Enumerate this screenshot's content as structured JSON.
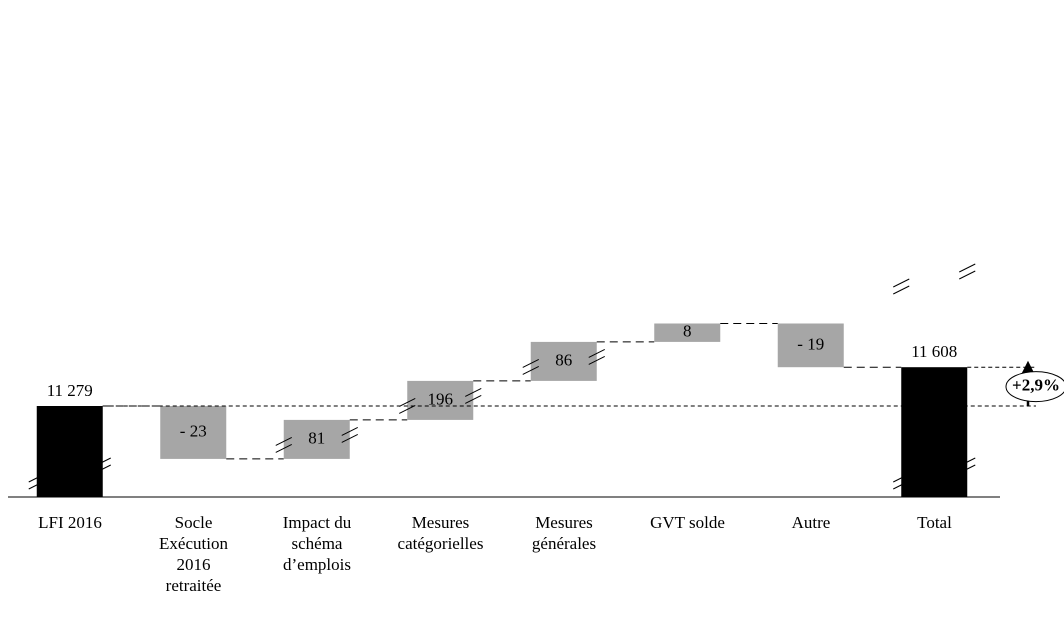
{
  "chart_data": {
    "type": "waterfall",
    "categories": [
      "LFI 2016",
      "Socle\nExécution\n2016\nretraitée",
      "Impact du\nschéma\nd’emplois",
      "Mesures\ncatégorielles",
      "Mesures\ngénérales",
      "GVT solde",
      "Autre",
      "Total"
    ],
    "values": [
      11279,
      -23,
      81,
      196,
      86,
      8,
      -19,
      11608
    ],
    "value_labels": [
      "11 279",
      "- 23",
      "81",
      "196",
      "86",
      "8",
      "- 19",
      "11 608"
    ],
    "color": "#a6a6a6",
    "total_color": "#000000",
    "annotation": "+2,9%"
  }
}
